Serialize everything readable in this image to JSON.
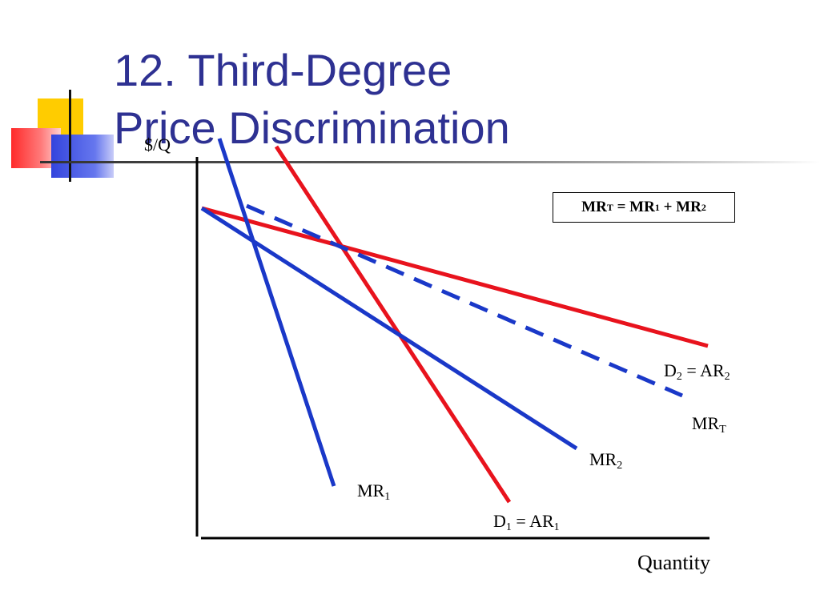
{
  "slide": {
    "title_line1": "12. Third-Degree",
    "title_line2": "Price Discrimination"
  },
  "colors": {
    "title": "#2e3192",
    "demand": "#e8131d",
    "mr": "#1a38c8",
    "deco_yellow": "#ffcc00",
    "deco_red": "#ff3b3b",
    "deco_blue": "#3344dd"
  },
  "diagram": {
    "y_axis_label": "$/Q",
    "x_axis_label": "Quantity",
    "formula": {
      "mr_t_main": "MR",
      "mr_t_sub": "T",
      "eq": " = ",
      "mr1_main": "MR",
      "mr1_sub": "1",
      "plus": " + ",
      "mr2_main": "MR",
      "mr2_sub": "2"
    },
    "labels": {
      "d2": {
        "a": "D",
        "a_sub": "2",
        "b": " = AR",
        "b_sub": "2"
      },
      "mrt": {
        "a": "MR",
        "a_sub": "T"
      },
      "mr2": {
        "a": "MR",
        "a_sub": "2"
      },
      "mr1": {
        "a": "MR",
        "a_sub": "1"
      },
      "d1": {
        "a": "D",
        "a_sub": "1",
        "b": " = AR",
        "b_sub": "1"
      }
    }
  }
}
